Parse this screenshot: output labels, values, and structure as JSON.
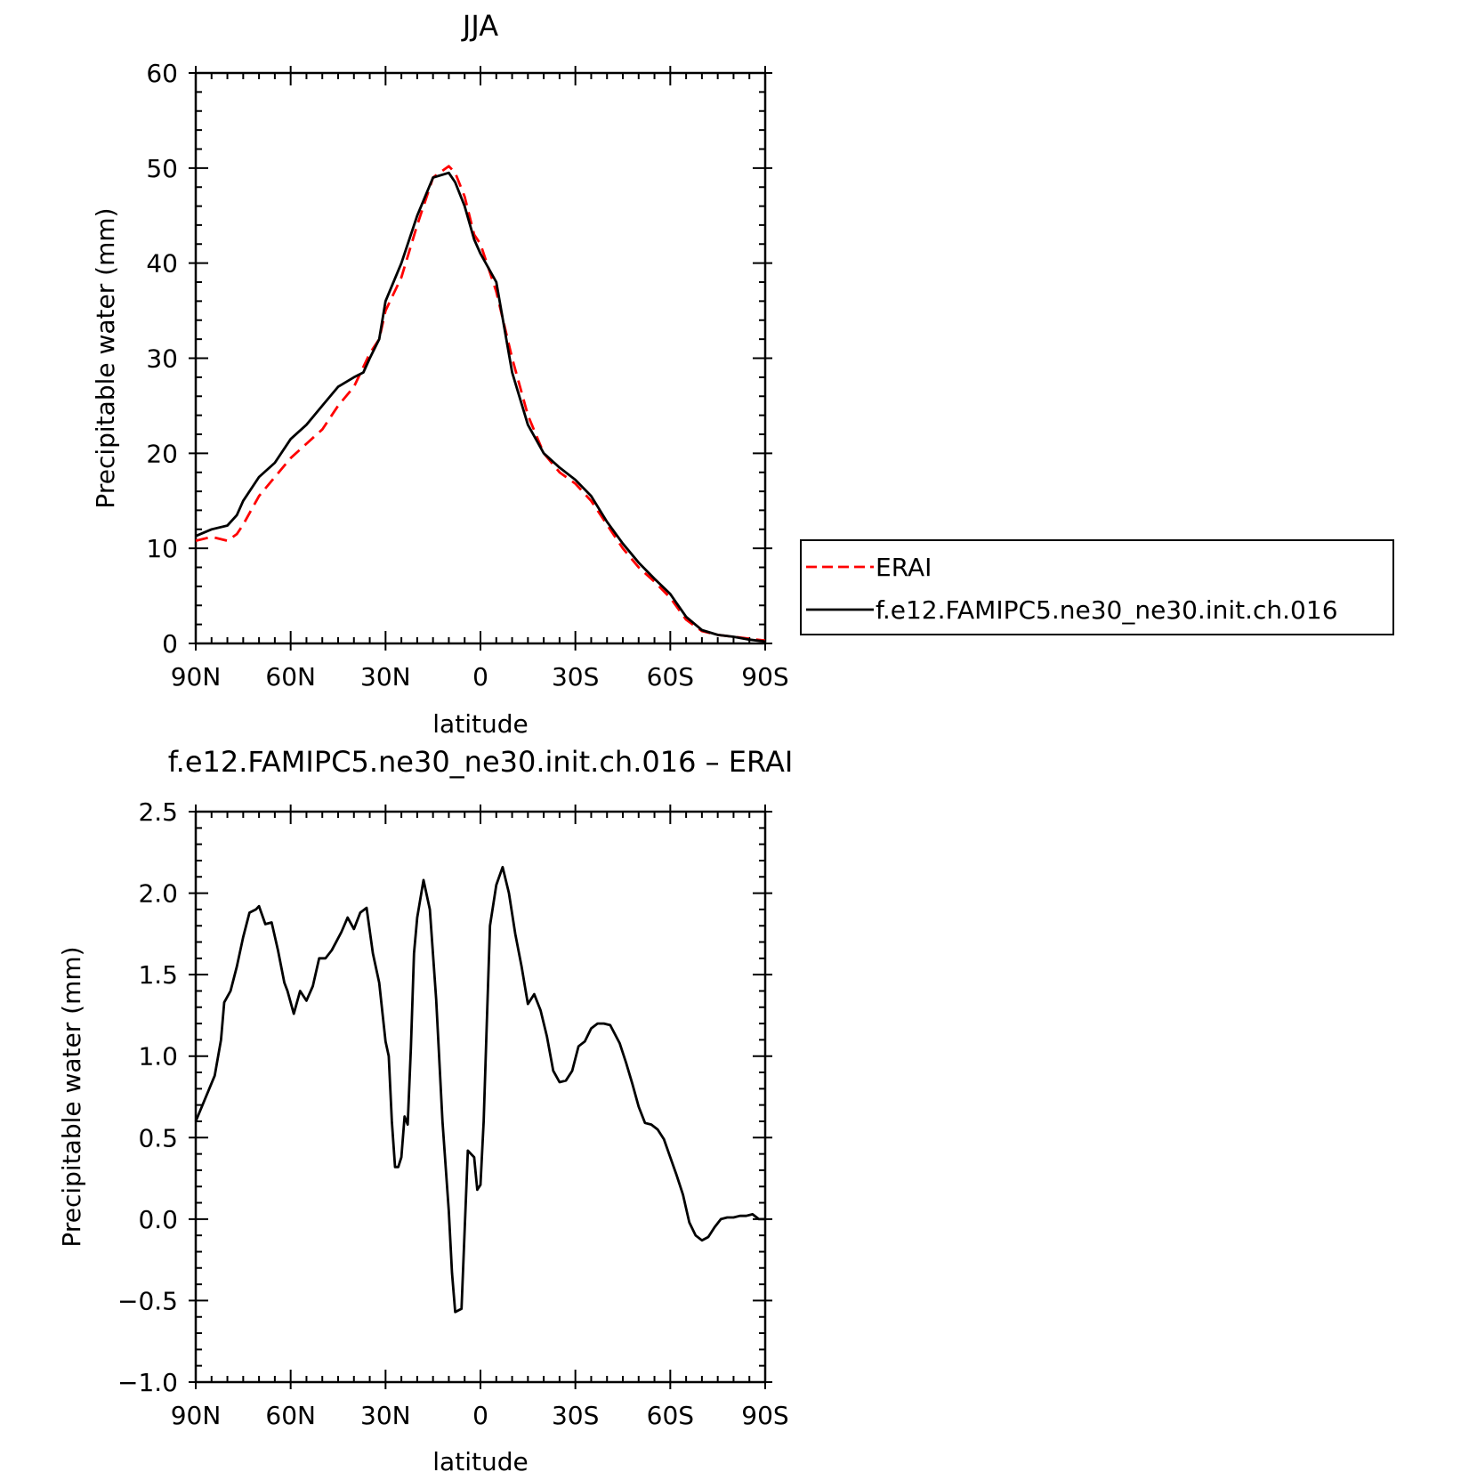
{
  "chart_data": [
    {
      "type": "line",
      "title": "JJA",
      "xlabel": "latitude",
      "ylabel": "Precipitable water (mm)",
      "xlim": [
        90,
        -90
      ],
      "ylim": [
        0,
        60
      ],
      "xtick_values": [
        90,
        60,
        30,
        0,
        -30,
        -60,
        -90
      ],
      "xtick_labels": [
        "90N",
        "60N",
        "30N",
        "0",
        "30S",
        "60S",
        "90S"
      ],
      "ytick_values": [
        0,
        10,
        20,
        30,
        40,
        50,
        60
      ],
      "ytick_labels": [
        "0",
        "10",
        "20",
        "30",
        "40",
        "50",
        "60"
      ],
      "grid": false,
      "legend_position": "right",
      "series": [
        {
          "name": "ERAI",
          "color": "#ff0000",
          "dash": "dashed",
          "x": [
            90,
            85,
            80,
            77,
            75,
            70,
            65,
            60,
            55,
            50,
            45,
            40,
            35,
            32,
            30,
            25,
            20,
            15,
            10,
            8,
            5,
            2,
            0,
            -5,
            -10,
            -15,
            -20,
            -25,
            -30,
            -35,
            -40,
            -45,
            -50,
            -55,
            -60,
            -65,
            -70,
            -75,
            -80,
            -85,
            -90
          ],
          "y": [
            10.8,
            11.2,
            10.8,
            11.5,
            12.5,
            15.5,
            17.5,
            19.5,
            21,
            22.5,
            25,
            27,
            30.5,
            32,
            35,
            38.5,
            44,
            49,
            50.2,
            49.5,
            47,
            43,
            42,
            37,
            30,
            24,
            20,
            18,
            16.8,
            15,
            12.5,
            10,
            8,
            6.5,
            4.8,
            2.5,
            1.3,
            0.9,
            0.7,
            0.5,
            0.3
          ]
        },
        {
          "name": "f.e12.FAMIPC5.ne30_ne30.init.ch.016",
          "color": "#000000",
          "dash": "solid",
          "x": [
            90,
            85,
            80,
            77,
            75,
            70,
            65,
            60,
            55,
            50,
            45,
            40,
            37,
            35,
            32,
            30,
            25,
            20,
            15,
            10,
            8,
            5,
            2,
            0,
            -5,
            -10,
            -15,
            -20,
            -25,
            -30,
            -35,
            -40,
            -45,
            -50,
            -55,
            -60,
            -65,
            -70,
            -75,
            -80,
            -85,
            -90
          ],
          "y": [
            11.3,
            12,
            12.4,
            13.5,
            15,
            17.5,
            19,
            21.5,
            23,
            25,
            27,
            28,
            28.5,
            30,
            32,
            36,
            40,
            45,
            49,
            49.5,
            48.5,
            46,
            42.5,
            41,
            38,
            28.5,
            23,
            20,
            18.5,
            17.2,
            15.5,
            12.8,
            10.5,
            8.5,
            6.8,
            5.2,
            2.8,
            1.4,
            0.9,
            0.7,
            0.4,
            0.2
          ]
        }
      ]
    },
    {
      "type": "line",
      "title": "f.e12.FAMIPC5.ne30_ne30.init.ch.016 – ERAI",
      "xlabel": "latitude",
      "ylabel": "Precipitable water (mm)",
      "xlim": [
        90,
        -90
      ],
      "ylim": [
        -1.0,
        2.5
      ],
      "xtick_values": [
        90,
        60,
        30,
        0,
        -30,
        -60,
        -90
      ],
      "xtick_labels": [
        "90N",
        "60N",
        "30N",
        "0",
        "30S",
        "60S",
        "90S"
      ],
      "ytick_values": [
        -1.0,
        -0.5,
        0.0,
        0.5,
        1.0,
        1.5,
        2.0,
        2.5
      ],
      "ytick_labels": [
        "−1.0",
        "−0.5",
        "0.0",
        "0.5",
        "1.0",
        "1.5",
        "2.0",
        "2.5"
      ],
      "grid": false,
      "series": [
        {
          "color": "#000000",
          "dash": "solid",
          "x": [
            90,
            84,
            82,
            81,
            79,
            77,
            75,
            73,
            71,
            70,
            68,
            66,
            64,
            62,
            61,
            59,
            57,
            55,
            53,
            51,
            49,
            47,
            44,
            42,
            40,
            38,
            36,
            34,
            32,
            30,
            29,
            28,
            27,
            26,
            25,
            24,
            23,
            22,
            21,
            20,
            18,
            16,
            14,
            12,
            10,
            9,
            8,
            6,
            4,
            2,
            1,
            0,
            -1,
            -2,
            -3,
            -5,
            -7,
            -9,
            -11,
            -13,
            -15,
            -17,
            -19,
            -21,
            -23,
            -25,
            -27,
            -29,
            -31,
            -33,
            -35,
            -37,
            -39,
            -41,
            -44,
            -46,
            -48,
            -50,
            -52,
            -54,
            -56,
            -58,
            -60,
            -62,
            -64,
            -66,
            -68,
            -70,
            -72,
            -74,
            -76,
            -78,
            -80,
            -82,
            -84,
            -86,
            -88,
            -90
          ],
          "y": [
            0.6,
            0.88,
            1.1,
            1.33,
            1.4,
            1.55,
            1.73,
            1.88,
            1.9,
            1.92,
            1.81,
            1.82,
            1.65,
            1.45,
            1.4,
            1.26,
            1.4,
            1.34,
            1.43,
            1.6,
            1.6,
            1.65,
            1.76,
            1.85,
            1.78,
            1.88,
            1.91,
            1.63,
            1.45,
            1.09,
            1.0,
            0.6,
            0.32,
            0.32,
            0.38,
            0.63,
            0.58,
            1.05,
            1.63,
            1.85,
            2.08,
            1.9,
            1.35,
            0.6,
            0.05,
            -0.33,
            -0.57,
            -0.55,
            0.42,
            0.38,
            0.18,
            0.21,
            0.6,
            1.2,
            1.8,
            2.05,
            2.16,
            2.0,
            1.75,
            1.55,
            1.32,
            1.38,
            1.28,
            1.12,
            0.91,
            0.84,
            0.85,
            0.91,
            1.06,
            1.09,
            1.17,
            1.2,
            1.2,
            1.19,
            1.08,
            0.96,
            0.83,
            0.69,
            0.59,
            0.58,
            0.55,
            0.49,
            0.38,
            0.27,
            0.15,
            -0.02,
            -0.1,
            -0.13,
            -0.11,
            -0.05,
            0.0,
            0.01,
            0.01,
            0.02,
            0.02,
            0.03,
            0.0,
            0.0
          ]
        }
      ]
    }
  ]
}
